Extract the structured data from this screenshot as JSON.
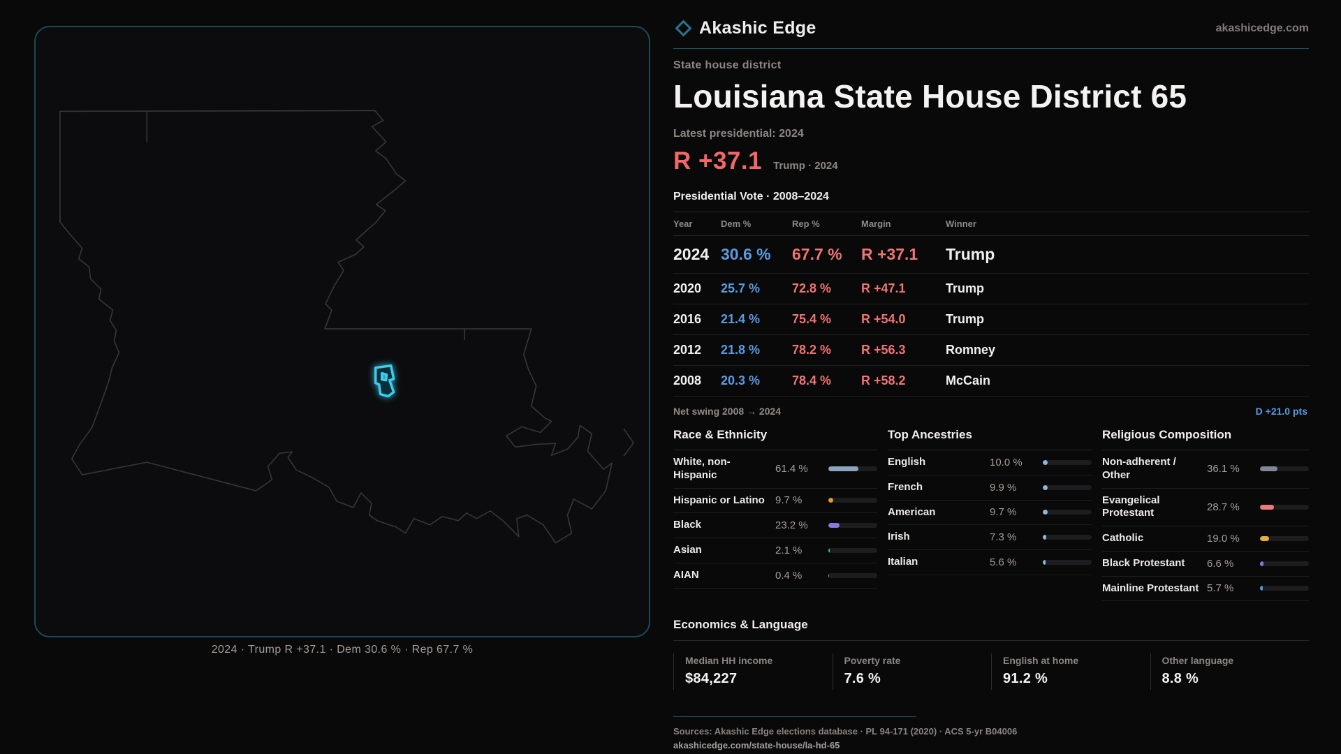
{
  "brand": {
    "name": "Akashic Edge",
    "site": "akashicedge.com"
  },
  "page": {
    "eyebrow": "State house district",
    "title": "Louisiana State House District 65",
    "latest_label": "Latest presidential: 2024",
    "headline": {
      "margin": "R +37.1",
      "context": "Trump · 2024"
    }
  },
  "vote_table": {
    "title": "Presidential Vote · 2008–2024",
    "columns": [
      "Year",
      "Dem %",
      "Rep %",
      "Margin",
      "Winner"
    ],
    "rows": [
      {
        "year": "2024",
        "dem": "30.6 %",
        "rep": "67.7 %",
        "margin": "R +37.1",
        "winner": "Trump",
        "highlight": true
      },
      {
        "year": "2020",
        "dem": "25.7 %",
        "rep": "72.8 %",
        "margin": "R +47.1",
        "winner": "Trump",
        "highlight": false
      },
      {
        "year": "2016",
        "dem": "21.4 %",
        "rep": "75.4 %",
        "margin": "R +54.0",
        "winner": "Trump",
        "highlight": false
      },
      {
        "year": "2012",
        "dem": "21.8 %",
        "rep": "78.2 %",
        "margin": "R +56.3",
        "winner": "Romney",
        "highlight": false
      },
      {
        "year": "2008",
        "dem": "20.3 %",
        "rep": "78.4 %",
        "margin": "R +58.2",
        "winner": "McCain",
        "highlight": false
      }
    ]
  },
  "net_swing": {
    "label": "Net swing 2008 → 2024",
    "value": "D +21.0 pts"
  },
  "demographics": [
    {
      "title": "Race & Ethnicity",
      "rows": [
        {
          "label": "White, non-Hispanic",
          "value": "61.4 %",
          "pct": 61.4,
          "color": "#8da4c0"
        },
        {
          "label": "Hispanic or Latino",
          "value": "9.7 %",
          "pct": 9.7,
          "color": "#e5992f"
        },
        {
          "label": "Black",
          "value": "23.2 %",
          "pct": 23.2,
          "color": "#8b78e0"
        },
        {
          "label": "Asian",
          "value": "2.1 %",
          "pct": 2.1,
          "color": "#2fc98c"
        },
        {
          "label": "AIAN",
          "value": "0.4 %",
          "pct": 0.4,
          "color": "#9aa0a8"
        }
      ]
    },
    {
      "title": "Top Ancestries",
      "rows": [
        {
          "label": "English",
          "value": "10.0 %",
          "pct": 10.0,
          "color": "#8fb6dd"
        },
        {
          "label": "French",
          "value": "9.9 %",
          "pct": 9.9,
          "color": "#8fb6dd"
        },
        {
          "label": "American",
          "value": "9.7 %",
          "pct": 9.7,
          "color": "#8fb6dd"
        },
        {
          "label": "Irish",
          "value": "7.3 %",
          "pct": 7.3,
          "color": "#8fb6dd"
        },
        {
          "label": "Italian",
          "value": "5.6 %",
          "pct": 5.6,
          "color": "#8fb6dd"
        }
      ]
    },
    {
      "title": "Religious Composition",
      "rows": [
        {
          "label": "Non-adherent / Other",
          "value": "36.1 %",
          "pct": 36.1,
          "color": "#7e8899"
        },
        {
          "label": "Evangelical Protestant",
          "value": "28.7 %",
          "pct": 28.7,
          "color": "#e87c7c"
        },
        {
          "label": "Catholic",
          "value": "19.0 %",
          "pct": 19.0,
          "color": "#e2b13c"
        },
        {
          "label": "Black Protestant",
          "value": "6.6 %",
          "pct": 6.6,
          "color": "#8b78e0"
        },
        {
          "label": "Mainline Protestant",
          "value": "5.7 %",
          "pct": 5.7,
          "color": "#4f9be0"
        }
      ]
    }
  ],
  "economics": {
    "title": "Economics & Language",
    "stats": [
      {
        "label": "Median HH income",
        "value": "$84,227"
      },
      {
        "label": "Poverty rate",
        "value": "7.6 %"
      },
      {
        "label": "English at home",
        "value": "91.2 %"
      },
      {
        "label": "Other language",
        "value": "8.8 %"
      }
    ]
  },
  "map": {
    "caption": "2024 · Trump R +37.1 · Dem 30.6 % · Rep 67.7 %",
    "district_color": "#3bcdee"
  },
  "footer": {
    "sources": "Sources: Akashic Edge elections database · PL 94-171 (2020) · ACS 5-yr B04006",
    "permalink": "akashicedge.com/state-house/la-hd-65"
  }
}
